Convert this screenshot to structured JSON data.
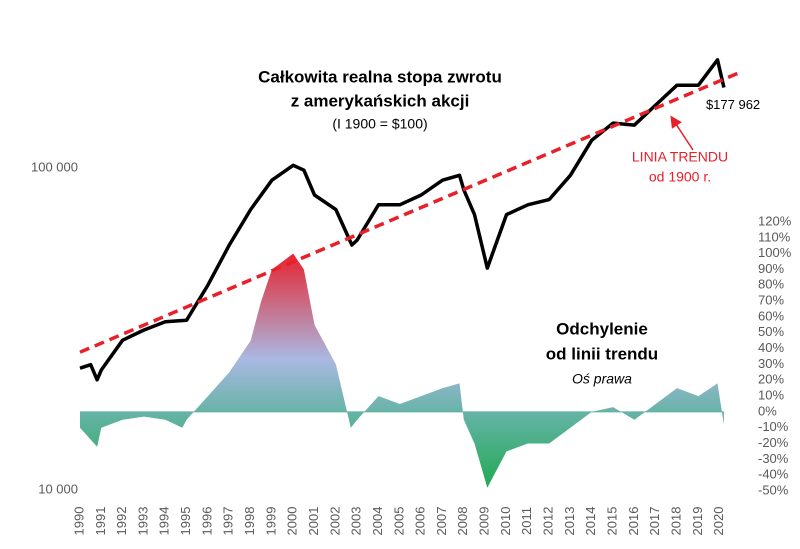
{
  "chart_data": {
    "type": "line",
    "title": [
      "Całkowita realna stopa zwrotu",
      "z amerykańskich akcji"
    ],
    "subtitle": "(I 1900 = $100)",
    "ylog": true,
    "xlim": [
      1990,
      2021
    ],
    "xticks": [
      1990,
      1991,
      1992,
      1993,
      1994,
      1995,
      1996,
      1997,
      1998,
      1999,
      2000,
      2001,
      2002,
      2003,
      2004,
      2005,
      2006,
      2007,
      2008,
      2009,
      2010,
      2011,
      2012,
      2013,
      2014,
      2015,
      2016,
      2017,
      2018,
      2019,
      2020
    ],
    "ylim": [
      10000,
      250000
    ],
    "yticks": [
      {
        "value": 10000,
        "label": "10 000"
      },
      {
        "value": 100000,
        "label": "100 000"
      }
    ],
    "y2lim": [
      -50,
      120
    ],
    "y2ticks": [
      {
        "value": 120,
        "label": "120%"
      },
      {
        "value": 110,
        "label": "110%"
      },
      {
        "value": 100,
        "label": "100%"
      },
      {
        "value": 90,
        "label": "90%"
      },
      {
        "value": 80,
        "label": "80%"
      },
      {
        "value": 70,
        "label": "70%"
      },
      {
        "value": 60,
        "label": "60%"
      },
      {
        "value": 50,
        "label": "50%"
      },
      {
        "value": 40,
        "label": "40%"
      },
      {
        "value": 30,
        "label": "30%"
      },
      {
        "value": 20,
        "label": "20%"
      },
      {
        "value": 10,
        "label": "10%"
      },
      {
        "value": 0,
        "label": "0%"
      },
      {
        "value": -10,
        "label": "-10%"
      },
      {
        "value": -20,
        "label": "-20%"
      },
      {
        "value": -30,
        "label": "-30%"
      },
      {
        "value": -40,
        "label": "-40%"
      },
      {
        "value": -50,
        "label": "-50%"
      }
    ],
    "series": [
      {
        "color": "#000000",
        "style": "solid",
        "x": [
          1990,
          1990.5,
          1990.8,
          1991,
          1992,
          1993,
          1994,
          1995,
          1996,
          1997,
          1998,
          1999,
          2000,
          2000.5,
          2001,
          2002,
          2002.75,
          2003,
          2004,
          2005,
          2006,
          2007,
          2007.8,
          2008,
          2008.5,
          2009.1,
          2010,
          2011,
          2012,
          2013,
          2014,
          2015,
          2016,
          2017,
          2018,
          2019,
          2019.9,
          2020.2
        ],
        "values": [
          23900,
          24500,
          22000,
          23600,
          29200,
          31400,
          33300,
          33700,
          43300,
          57700,
          74300,
          91700,
          102000,
          98500,
          82500,
          74300,
          57700,
          59800,
          76900,
          76900,
          82500,
          91700,
          95000,
          85600,
          71700,
          48900,
          71700,
          76900,
          79800,
          95000,
          122000,
          138000,
          136000,
          157000,
          181000,
          181000,
          217000,
          177962
        ],
        "value_labels": [
          null,
          null,
          null,
          null,
          null,
          null,
          null,
          null,
          null,
          null,
          null,
          null,
          null,
          null,
          null,
          null,
          null,
          null,
          null,
          null,
          null,
          null,
          null,
          null,
          null,
          null,
          null,
          null,
          null,
          null,
          null,
          null,
          null,
          null,
          null,
          null,
          null,
          "$177 962"
        ]
      },
      {
        "color": "#e8202a",
        "style": "dashed",
        "x": [
          1990,
          2021
        ],
        "values": [
          26800,
          199000
        ]
      },
      {
        "axis": "y2",
        "style": "area",
        "colors": [
          "#1fa84f",
          "#5fb3a0",
          "#aab8e2",
          "#e8202a"
        ],
        "x": [
          1990,
          1990.8,
          1991,
          1992,
          1993,
          1994,
          1994.8,
          1995,
          1996,
          1997,
          1998,
          1998.5,
          1999,
          2000,
          2000.5,
          2001,
          2002,
          2002.7,
          2003,
          2004,
          2005,
          2006,
          2007,
          2007.8,
          2008,
          2008.5,
          2009.1,
          2010,
          2011,
          2012,
          2013,
          2014,
          2015,
          2016,
          2017,
          2018,
          2019,
          2019.9,
          2020.2
        ],
        "values": [
          -10,
          -22,
          -10,
          -5,
          -3,
          -5,
          -10,
          -5,
          10,
          25,
          45,
          70,
          90,
          100,
          90,
          55,
          30,
          -10,
          -5,
          10,
          5,
          10,
          15,
          18,
          -5,
          -20,
          -48,
          -25,
          -20,
          -20,
          -10,
          0,
          3,
          -5,
          5,
          15,
          10,
          18,
          -8
        ]
      }
    ],
    "annotations": [
      {
        "text": "LINIA TRENDU",
        "color": "#e8202a"
      },
      {
        "text": "od 1900 r.",
        "color": "#e8202a"
      },
      {
        "text": "Odchylenie",
        "color": "#000000"
      },
      {
        "text": "od linii trendu",
        "color": "#000000"
      },
      {
        "text": "Oś prawa",
        "color": "#000000"
      }
    ]
  }
}
